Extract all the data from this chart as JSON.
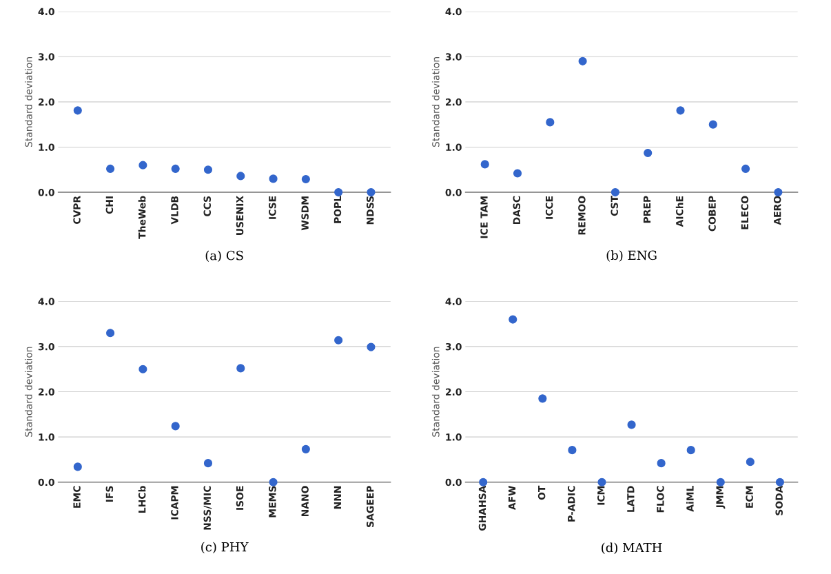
{
  "chart_data": [
    {
      "type": "scatter",
      "xlabel": "(a) CS",
      "ylabel": "Standard deviation",
      "categories": [
        "CVPR",
        "CHI",
        "TheWeb",
        "VLDB",
        "CCS",
        "USENIX",
        "ICSE",
        "WSDM",
        "POPL",
        "NDSS"
      ],
      "series": [
        {
          "color": "#3366cc",
          "values": [
            1.81,
            0.52,
            0.6,
            0.52,
            0.5,
            0.36,
            0.3,
            0.29,
            0,
            0
          ]
        }
      ],
      "ylim": [
        0,
        4.0
      ],
      "yticks": [
        {
          "value": 0,
          "label": "0.0"
        },
        {
          "value": 1,
          "label": "1.0"
        },
        {
          "value": 2,
          "label": "2.0"
        },
        {
          "value": 3,
          "label": "3.0"
        },
        {
          "value": 4,
          "label": "4.0"
        }
      ],
      "grid": "y",
      "marker": "circle"
    },
    {
      "type": "scatter",
      "xlabel": "(b) ENG",
      "ylabel": "Standard deviation",
      "categories": [
        "ICE TAM",
        "DASC",
        "ICCE",
        "REMOO",
        "CST",
        "PREP",
        "AIChE",
        "COBEP",
        "ELECO",
        "AERO"
      ],
      "series": [
        {
          "color": "#3366cc",
          "values": [
            0.62,
            0.42,
            1.55,
            2.9,
            0,
            0.87,
            1.81,
            1.5,
            0.52,
            0
          ]
        }
      ],
      "ylim": [
        0,
        4.0
      ],
      "yticks": [
        {
          "value": 0,
          "label": "0.0"
        },
        {
          "value": 1,
          "label": "1.0"
        },
        {
          "value": 2,
          "label": "2.0"
        },
        {
          "value": 3,
          "label": "3.0"
        },
        {
          "value": 4,
          "label": "4.0"
        }
      ],
      "grid": "y",
      "marker": "circle"
    },
    {
      "type": "scatter",
      "xlabel": "(c) PHY",
      "ylabel": "Standard deviation",
      "categories": [
        "EMC",
        "IFS",
        "LHCb",
        "ICAPM",
        "NSS/MIC",
        "ISOE",
        "MEMS",
        "NANO",
        "NNN",
        "SAGEEP"
      ],
      "series": [
        {
          "color": "#3366cc",
          "values": [
            0.34,
            3.3,
            2.5,
            1.24,
            0.42,
            2.52,
            0,
            0.73,
            3.14,
            2.99
          ]
        }
      ],
      "ylim": [
        0,
        4.0
      ],
      "yticks": [
        {
          "value": 0,
          "label": "0.0"
        },
        {
          "value": 1,
          "label": "1.0"
        },
        {
          "value": 2,
          "label": "2.0"
        },
        {
          "value": 3,
          "label": "3.0"
        },
        {
          "value": 4,
          "label": "4.0"
        }
      ],
      "grid": "y",
      "marker": "circle"
    },
    {
      "type": "scatter",
      "xlabel": "(d) MATH",
      "ylabel": "Standard deviation",
      "categories": [
        "GHAHSA",
        "AFW",
        "OT",
        "P-ADIC",
        "ICM",
        "LATD",
        "FLOC",
        "AiML",
        "JMM",
        "ECM",
        "SODA"
      ],
      "series": [
        {
          "color": "#3366cc",
          "values": [
            0,
            3.6,
            1.85,
            0.71,
            0,
            1.27,
            0.42,
            0.71,
            0,
            0.45,
            0
          ]
        }
      ],
      "ylim": [
        0,
        4.0
      ],
      "yticks": [
        {
          "value": 0,
          "label": "0.0"
        },
        {
          "value": 1,
          "label": "1.0"
        },
        {
          "value": 2,
          "label": "2.0"
        },
        {
          "value": 3,
          "label": "3.0"
        },
        {
          "value": 4,
          "label": "4.0"
        }
      ],
      "grid": "y",
      "marker": "circle"
    }
  ]
}
